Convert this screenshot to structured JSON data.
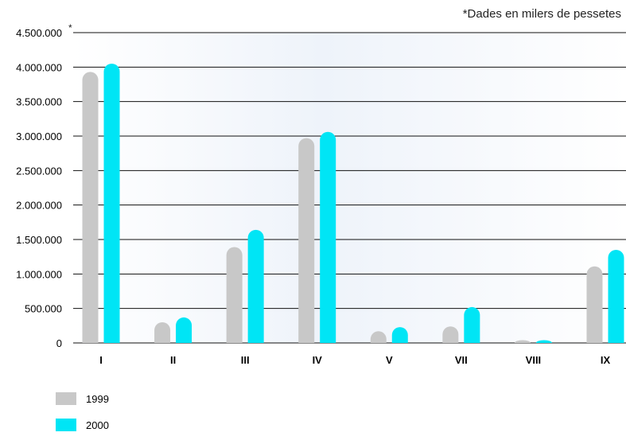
{
  "chart_data": {
    "type": "bar",
    "note": "*Dades en milers de pessetes",
    "axis_marker": "*",
    "categories": [
      "I",
      "II",
      "III",
      "IV",
      "V",
      "VII",
      "VIII",
      "IX"
    ],
    "series": [
      {
        "name": "1999",
        "color": "#c8c8c8",
        "values": [
          3930000,
          300000,
          1390000,
          2970000,
          170000,
          240000,
          40000,
          1110000
        ]
      },
      {
        "name": "2000",
        "color": "#00e5f5",
        "values": [
          4050000,
          370000,
          1640000,
          3060000,
          230000,
          520000,
          40000,
          1350000
        ]
      }
    ],
    "ylim": [
      0,
      4500000
    ],
    "yticks": [
      0,
      500000,
      1000000,
      1500000,
      2000000,
      2500000,
      3000000,
      3500000,
      4000000,
      4500000
    ],
    "ytick_labels": [
      "0",
      "500.000",
      "1.000.000",
      "1.500.000",
      "2.000.000",
      "2.500.000",
      "3.000.000",
      "3.500.000",
      "4.000.000",
      "4.500.000"
    ],
    "grid": true,
    "legend_position": "bottom-left"
  }
}
